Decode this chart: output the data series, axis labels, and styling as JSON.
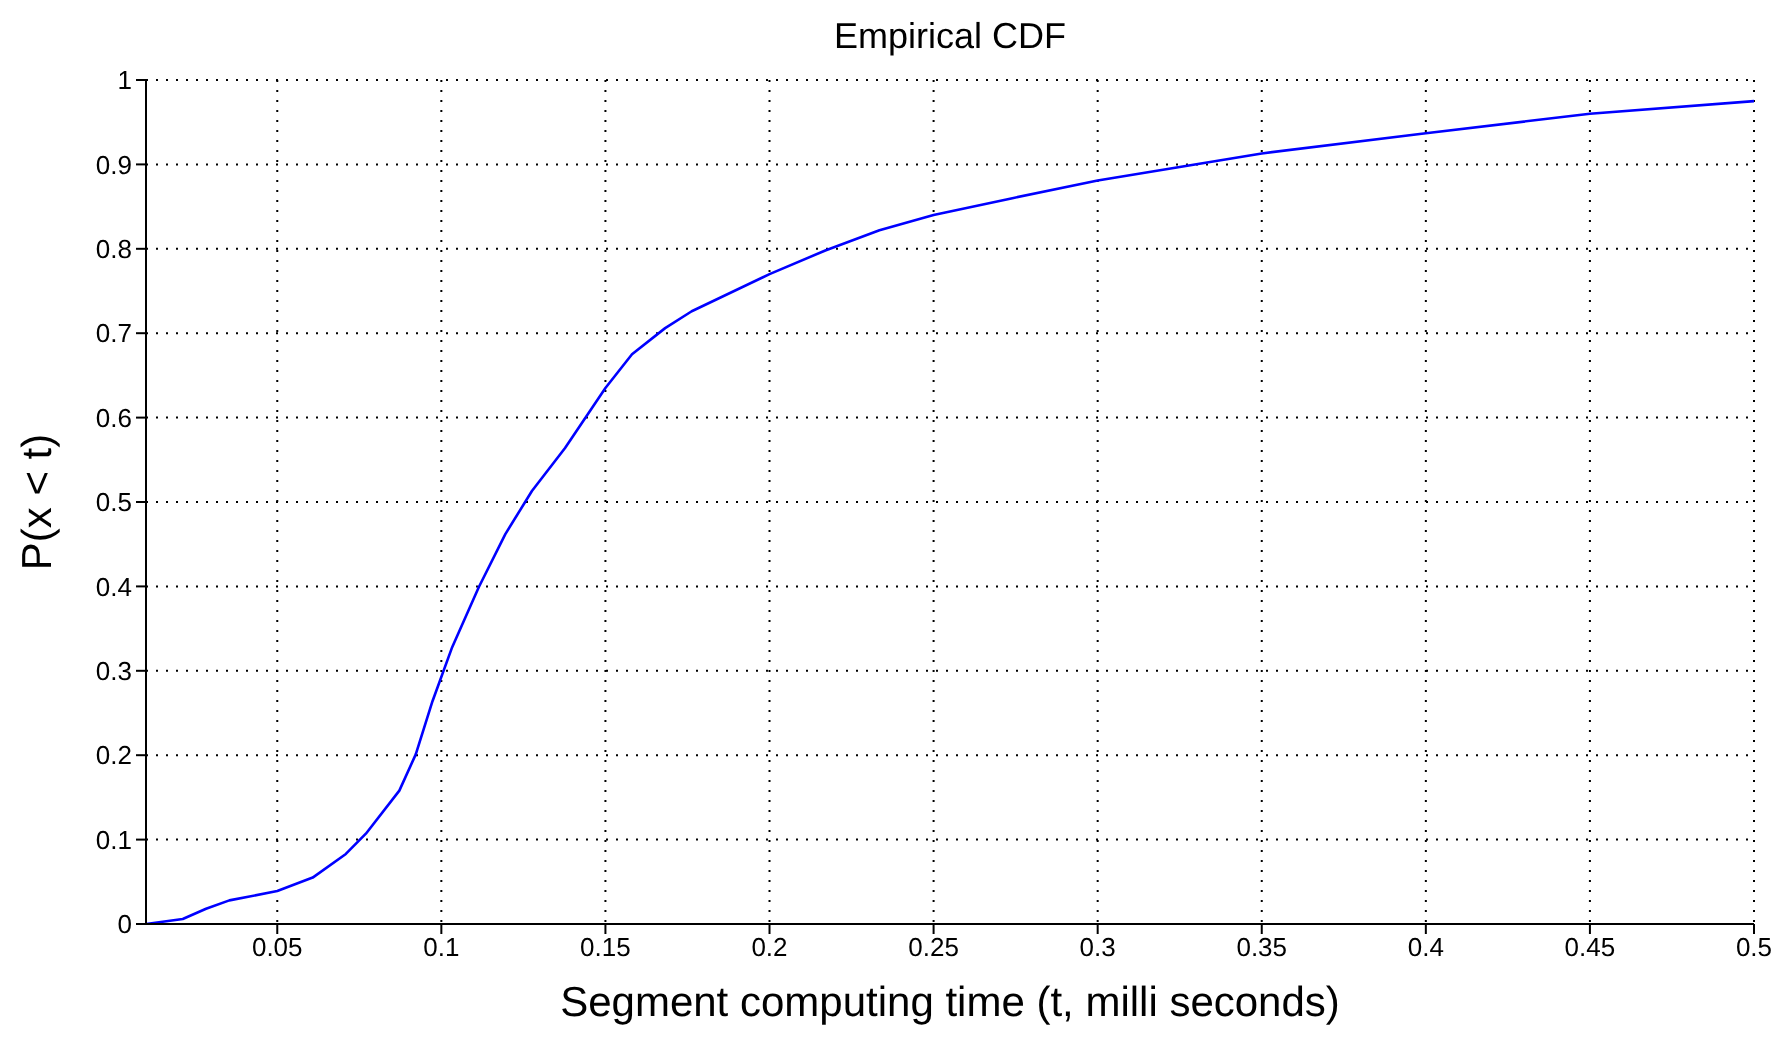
{
  "chart_data": {
    "type": "line",
    "title": "Empirical CDF",
    "xlabel": "Segment computing time (t, milli seconds)",
    "ylabel": "P(x < t)",
    "x": [
      0.01,
      0.0212,
      0.0283,
      0.0354,
      0.05,
      0.0608,
      0.0709,
      0.077,
      0.0872,
      0.0922,
      0.0973,
      0.1033,
      0.1114,
      0.1195,
      0.1276,
      0.1377,
      0.15,
      0.1581,
      0.1682,
      0.1763,
      0.2,
      0.217,
      0.2335,
      0.25,
      0.274,
      0.3,
      0.325,
      0.35,
      0.4,
      0.45,
      0.5
    ],
    "series": [
      {
        "color": "#0000ff",
        "values": [
          0,
          0.006,
          0.018,
          0.028,
          0.039,
          0.055,
          0.083,
          0.107,
          0.158,
          0.201,
          0.264,
          0.328,
          0.399,
          0.462,
          0.513,
          0.564,
          0.635,
          0.675,
          0.706,
          0.726,
          0.77,
          0.798,
          0.822,
          0.84,
          0.86,
          0.881,
          0.897,
          0.913,
          0.937,
          0.96,
          0.975
        ]
      }
    ],
    "xlim": [
      0.01,
      0.5
    ],
    "xticks": [
      0.05,
      0.1,
      0.15,
      0.2,
      0.25,
      0.3,
      0.35,
      0.4,
      0.45,
      0.5
    ],
    "ylim": [
      0,
      1
    ],
    "yticks": [
      0,
      0.1,
      0.2,
      0.3,
      0.4,
      0.5,
      0.6,
      0.7,
      0.8,
      0.9,
      1
    ],
    "grid": true,
    "legend": false,
    "marker": "none",
    "line_style": "solid"
  }
}
